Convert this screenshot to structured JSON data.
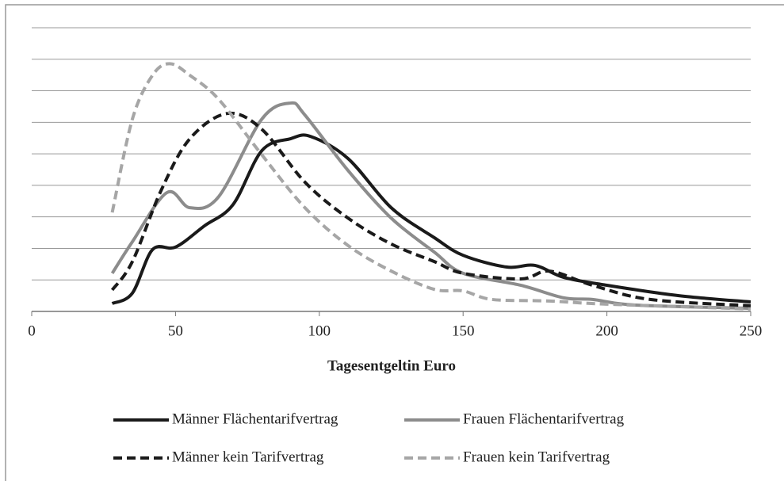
{
  "chart_data": {
    "type": "line",
    "x_label": "Tagesentgeltin Euro",
    "xlim": [
      0,
      250
    ],
    "xticks": [
      0,
      50,
      100,
      150,
      200,
      250
    ],
    "ylim": [
      0,
      9
    ],
    "yticks": [
      0,
      1,
      2,
      3,
      4,
      5,
      6,
      7,
      8,
      9
    ],
    "grid": true,
    "legend": "bottom",
    "series": [
      {
        "name": "Männer Flächentarifvertrag",
        "color": "#1a1a1a",
        "dashed": false,
        "x": [
          28,
          35,
          42,
          50,
          60,
          70,
          80,
          90,
          97,
          110,
          125,
          140,
          150,
          165,
          175,
          185,
          200,
          225,
          250
        ],
        "values": [
          0.25,
          0.58,
          1.96,
          2.04,
          2.71,
          3.39,
          5.1,
          5.48,
          5.55,
          4.85,
          3.29,
          2.34,
          1.78,
          1.41,
          1.46,
          1.08,
          0.83,
          0.5,
          0.3
        ]
      },
      {
        "name": "Frauen Flächentarifvertrag",
        "color": "#8c8c8c",
        "dashed": false,
        "x": [
          28,
          35,
          47,
          55,
          65,
          80,
          90,
          95,
          110,
          125,
          140,
          150,
          170,
          185,
          195,
          210,
          250
        ],
        "values": [
          1.21,
          2.21,
          3.77,
          3.29,
          3.64,
          6.1,
          6.61,
          6.23,
          4.47,
          2.96,
          1.88,
          1.21,
          0.83,
          0.43,
          0.38,
          0.2,
          0.1
        ]
      },
      {
        "name": "Männer kein Tarifvertrag",
        "color": "#1a1a1a",
        "dashed": true,
        "x": [
          28,
          35,
          45,
          55,
          68,
          80,
          95,
          110,
          125,
          140,
          150,
          170,
          180,
          195,
          215,
          250
        ],
        "values": [
          0.68,
          1.58,
          3.84,
          5.48,
          6.28,
          5.78,
          4.1,
          2.96,
          2.14,
          1.58,
          1.21,
          1.03,
          1.28,
          0.83,
          0.38,
          0.18
        ]
      },
      {
        "name": "Frauen kein Tarifvertrag",
        "color": "#a6a6a6",
        "dashed": true,
        "x": [
          28,
          35,
          42,
          48,
          55,
          65,
          80,
          95,
          110,
          125,
          140,
          150,
          160,
          180,
          200,
          250
        ],
        "values": [
          3.14,
          6.1,
          7.49,
          7.86,
          7.49,
          6.73,
          4.97,
          3.29,
          2.09,
          1.28,
          0.7,
          0.65,
          0.38,
          0.33,
          0.23,
          0.08
        ]
      }
    ]
  }
}
